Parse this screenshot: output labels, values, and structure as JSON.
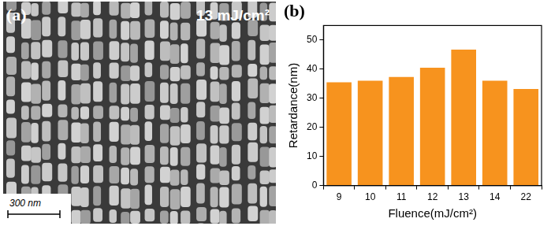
{
  "image_panel": {
    "label": "(a)",
    "annotation": "13 mJ/cm²",
    "scale_bar": "300 nm"
  },
  "chart_data": {
    "type": "bar",
    "title": "(b)",
    "x_label": "Fluence(mJ/cm²)",
    "y_label": "Retardance(nm)",
    "categories": [
      "9",
      "10",
      "11",
      "12",
      "13",
      "14",
      "22"
    ],
    "values": [
      35.5,
      36,
      37.3,
      40.5,
      46.7,
      36,
      33.2
    ],
    "color": "#f7931e",
    "ylim": [
      0,
      55
    ],
    "yticks": [
      0,
      10,
      20,
      30,
      40,
      50
    ],
    "grid": false
  }
}
